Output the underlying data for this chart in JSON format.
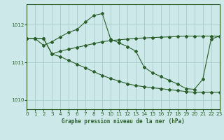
{
  "title": "Graphe pression niveau de la mer (hPa)",
  "bg_color": "#cce8e8",
  "grid_color": "#aacccc",
  "line_color": "#2a5f2a",
  "xlim": [
    0,
    23
  ],
  "ylim": [
    1009.75,
    1012.55
  ],
  "yticks": [
    1010,
    1011,
    1012
  ],
  "xticks": [
    0,
    1,
    2,
    3,
    4,
    5,
    6,
    7,
    8,
    9,
    10,
    11,
    12,
    13,
    14,
    15,
    16,
    17,
    18,
    19,
    20,
    21,
    22,
    23
  ],
  "s1_x": [
    0,
    1,
    2,
    3,
    4,
    5,
    6,
    7,
    8,
    9,
    10,
    11,
    12,
    13,
    14,
    15,
    16,
    17,
    18,
    19,
    20,
    21,
    22,
    23
  ],
  "s1_y": [
    1011.63,
    1011.63,
    1011.45,
    1011.55,
    1011.68,
    1011.8,
    1011.88,
    1012.08,
    1012.25,
    1012.3,
    1011.62,
    1011.52,
    1011.42,
    1011.3,
    1010.87,
    1010.72,
    1010.62,
    1010.52,
    1010.42,
    1010.3,
    1010.28,
    1010.55,
    1011.62,
    1011.7
  ],
  "s2_x": [
    0,
    1,
    2,
    3,
    4,
    5,
    6,
    7,
    8,
    9,
    10,
    11,
    12,
    13,
    14,
    15,
    16,
    17,
    18,
    19,
    20,
    21,
    22,
    23
  ],
  "s2_y": [
    1011.63,
    1011.63,
    1011.63,
    1011.22,
    1011.3,
    1011.35,
    1011.4,
    1011.45,
    1011.5,
    1011.55,
    1011.58,
    1011.6,
    1011.62,
    1011.64,
    1011.65,
    1011.66,
    1011.67,
    1011.68,
    1011.69,
    1011.7,
    1011.7,
    1011.7,
    1011.7,
    1011.7
  ],
  "s3_x": [
    0,
    1,
    2,
    3,
    4,
    5,
    6,
    7,
    8,
    9,
    10,
    11,
    12,
    13,
    14,
    15,
    16,
    17,
    18,
    19,
    20,
    21,
    22,
    23
  ],
  "s3_y": [
    1011.63,
    1011.63,
    1011.63,
    1011.22,
    1011.15,
    1011.05,
    1010.95,
    1010.85,
    1010.75,
    1010.65,
    1010.57,
    1010.5,
    1010.43,
    1010.38,
    1010.35,
    1010.32,
    1010.3,
    1010.27,
    1010.25,
    1010.22,
    1010.2,
    1010.2,
    1010.2,
    1010.2
  ]
}
